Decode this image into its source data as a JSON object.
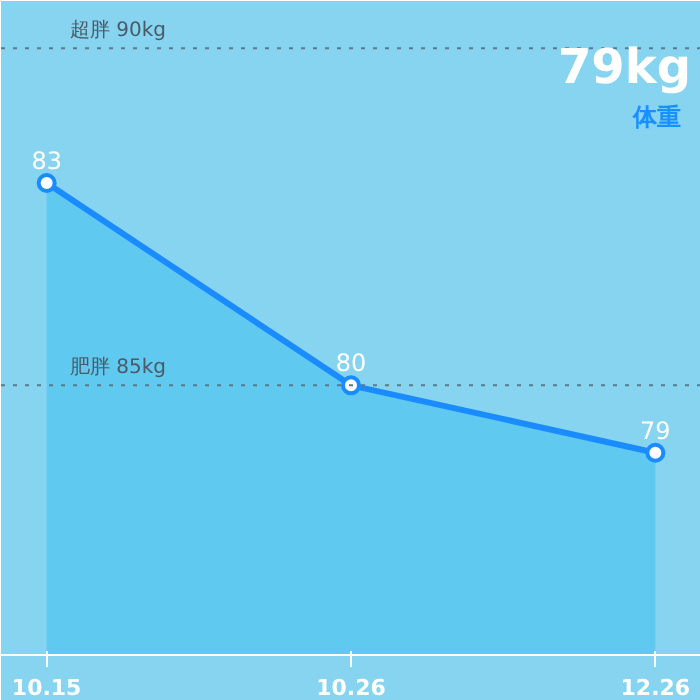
{
  "chart_data": {
    "type": "area",
    "title": "79kg",
    "subtitle": "体重",
    "categories": [
      "10.15",
      "10.26",
      "12.26"
    ],
    "series": [
      {
        "color": "#1a8cff",
        "values": [
          83,
          80,
          79
        ]
      }
    ],
    "ylim": [
      76,
      85.7
    ],
    "data_labels": true,
    "marker": "circle",
    "grid": false,
    "tick_labels": "x",
    "ref_lines": [
      {
        "axis": "y",
        "value": 85,
        "label": "超胖 90kg",
        "color": "#5a7a8a",
        "line_style": "dotted"
      },
      {
        "axis": "y",
        "value": 80,
        "label": "肥胖 85kg",
        "color": "#5a7a8a",
        "line_style": "dotted"
      }
    ]
  }
}
